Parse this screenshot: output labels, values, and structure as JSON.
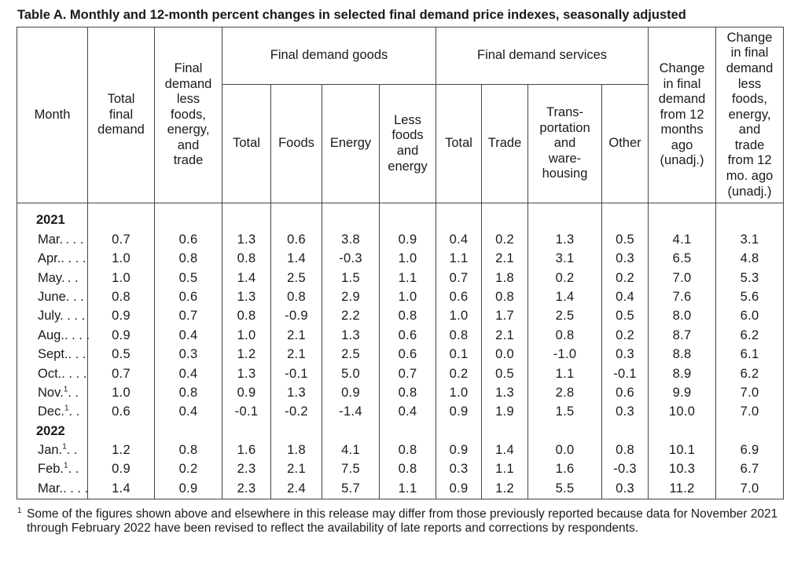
{
  "title": "Table A. Monthly and 12-month percent changes in selected final demand price indexes, seasonally adjusted",
  "headers": {
    "month": "Month",
    "total_final_demand": [
      "Total",
      "final",
      "demand"
    ],
    "fd_less": [
      "Final",
      "demand",
      "less",
      "foods,",
      "energy,",
      "and",
      "trade"
    ],
    "goods_group": "Final demand goods",
    "goods": {
      "total": "Total",
      "foods": "Foods",
      "energy": "Energy",
      "less": [
        "Less",
        "foods",
        "and",
        "energy"
      ]
    },
    "services_group": "Final demand services",
    "services": {
      "total": "Total",
      "trade": "Trade",
      "transport": [
        "Trans-",
        "portation",
        "and",
        "ware-",
        "housing"
      ],
      "other": "Other"
    },
    "change12": [
      "Change",
      "in final",
      "demand",
      "from 12",
      "months",
      "ago",
      "(unadj.)"
    ],
    "changeCore": [
      "Change",
      "in final",
      "demand",
      "less",
      "foods,",
      "energy,",
      "and",
      "trade",
      "from 12",
      "mo. ago",
      "(unadj.)"
    ]
  },
  "rows": [
    {
      "year": "2021"
    },
    {
      "month": "Mar.",
      "dots": " . . .",
      "sup": "",
      "values": [
        "0.7",
        "0.6",
        "1.3",
        "0.6",
        "3.8",
        "0.9",
        "0.4",
        "0.2",
        "1.3",
        "0.5",
        "4.1",
        "3.1"
      ]
    },
    {
      "month": "Apr.",
      "dots": ". . . .",
      "sup": "",
      "values": [
        "1.0",
        "0.8",
        "0.8",
        "1.4",
        "-0.3",
        "1.0",
        "1.1",
        "2.1",
        "3.1",
        "0.3",
        "6.5",
        "4.8"
      ]
    },
    {
      "month": "May.",
      "dots": " . .",
      "sup": "",
      "values": [
        "1.0",
        "0.5",
        "1.4",
        "2.5",
        "1.5",
        "1.1",
        "0.7",
        "1.8",
        "0.2",
        "0.2",
        "7.0",
        "5.3"
      ]
    },
    {
      "month": "June",
      "dots": ". . .",
      "sup": "",
      "values": [
        "0.8",
        "0.6",
        "1.3",
        "0.8",
        "2.9",
        "1.0",
        "0.6",
        "0.8",
        "1.4",
        "0.4",
        "7.6",
        "5.6"
      ]
    },
    {
      "month": "July",
      "dots": ". . . .",
      "sup": "",
      "values": [
        "0.9",
        "0.7",
        "0.8",
        "-0.9",
        "2.2",
        "0.8",
        "1.0",
        "1.7",
        "2.5",
        "0.5",
        "8.0",
        "6.0"
      ]
    },
    {
      "month": "Aug.",
      "dots": ". . . .",
      "sup": "",
      "values": [
        "0.9",
        "0.4",
        "1.0",
        "2.1",
        "1.3",
        "0.6",
        "0.8",
        "2.1",
        "0.8",
        "0.2",
        "8.7",
        "6.2"
      ]
    },
    {
      "month": "Sept.",
      "dots": ". . .",
      "sup": "",
      "values": [
        "0.5",
        "0.3",
        "1.2",
        "2.1",
        "2.5",
        "0.6",
        "0.1",
        "0.0",
        "-1.0",
        "0.3",
        "8.8",
        "6.1"
      ]
    },
    {
      "month": "Oct.",
      "dots": ". . . .",
      "sup": "",
      "values": [
        "0.7",
        "0.4",
        "1.3",
        "-0.1",
        "5.0",
        "0.7",
        "0.2",
        "0.5",
        "1.1",
        "-0.1",
        "8.9",
        "6.2"
      ]
    },
    {
      "month": "Nov.",
      "dots": ". .",
      "sup": "1",
      "values": [
        "1.0",
        "0.8",
        "0.9",
        "1.3",
        "0.9",
        "0.8",
        "1.0",
        "1.3",
        "2.8",
        "0.6",
        "9.9",
        "7.0"
      ]
    },
    {
      "month": "Dec.",
      "dots": ". .",
      "sup": "1",
      "values": [
        "0.6",
        "0.4",
        "-0.1",
        "-0.2",
        "-1.4",
        "0.4",
        "0.9",
        "1.9",
        "1.5",
        "0.3",
        "10.0",
        "7.0"
      ]
    },
    {
      "year": "2022"
    },
    {
      "month": "Jan.",
      "dots": ". .",
      "sup": "1",
      "values": [
        "1.2",
        "0.8",
        "1.6",
        "1.8",
        "4.1",
        "0.8",
        "0.9",
        "1.4",
        "0.0",
        "0.8",
        "10.1",
        "6.9"
      ]
    },
    {
      "month": "Feb.",
      "dots": ". .",
      "sup": "1",
      "values": [
        "0.9",
        "0.2",
        "2.3",
        "2.1",
        "7.5",
        "0.8",
        "0.3",
        "1.1",
        "1.6",
        "-0.3",
        "10.3",
        "6.7"
      ]
    },
    {
      "month": "Mar.",
      "dots": ". . . .",
      "sup": "",
      "values": [
        "1.4",
        "0.9",
        "2.3",
        "2.4",
        "5.7",
        "1.1",
        "0.9",
        "1.2",
        "5.5",
        "0.3",
        "11.2",
        "7.0"
      ]
    }
  ],
  "footnote": {
    "mark": "1",
    "text": "Some of the figures shown above and elsewhere in this release may differ from those previously reported because data for November 2021 through February 2022 have been revised to reflect the availability of late reports and corrections by respondents."
  }
}
